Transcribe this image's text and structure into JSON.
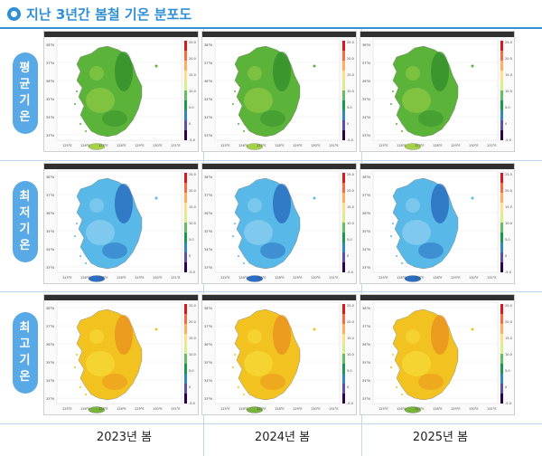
{
  "title": "지난 3년간 봄철 기온 분포도",
  "rows": [
    {
      "label": [
        "평",
        "균",
        "기",
        "온"
      ],
      "scheme": "green"
    },
    {
      "label": [
        "최",
        "저",
        "기",
        "온"
      ],
      "scheme": "blue"
    },
    {
      "label": [
        "최",
        "고",
        "기",
        "온"
      ],
      "scheme": "yellow"
    }
  ],
  "columns": [
    "2023년 봄",
    "2024년 봄",
    "2025년 봄"
  ],
  "colorbar_ticks": [
    "25.0",
    "20.0",
    "15.0",
    "10.0",
    "5.0",
    "0",
    "-5.0"
  ],
  "lat_ticks": [
    "38°N",
    "37°N",
    "36°N",
    "35°N",
    "34°N",
    "33°N"
  ],
  "lon_ticks": [
    "125°E",
    "126°E",
    "127°E",
    "128°E",
    "129°E",
    "130°E",
    "131°E"
  ],
  "colors": {
    "accent": "#2f8fd6",
    "label_bg": "#59a9e6"
  }
}
